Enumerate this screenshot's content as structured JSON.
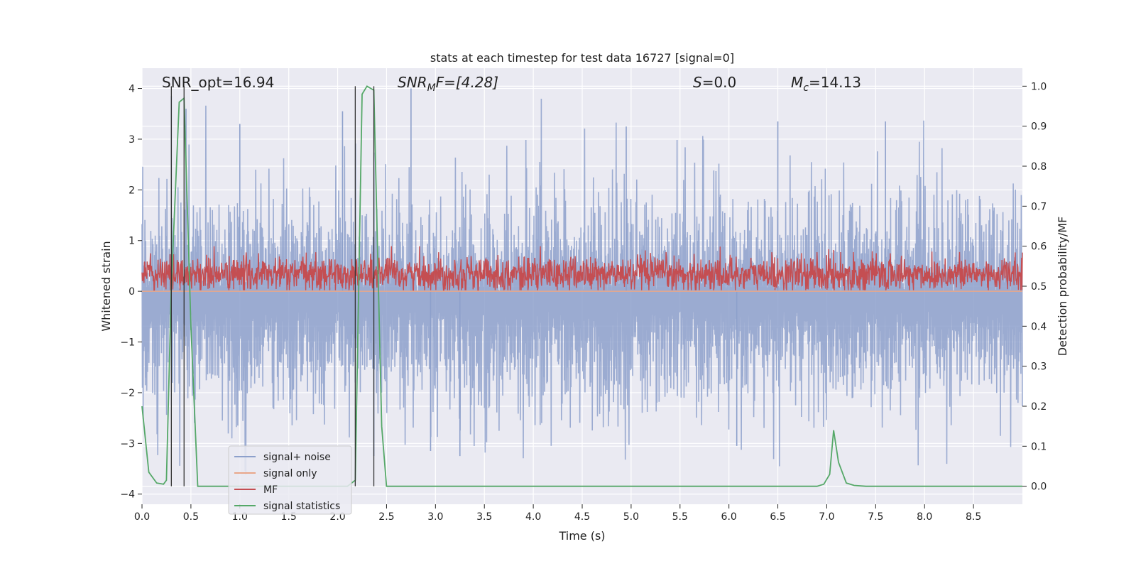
{
  "chart_data": {
    "type": "line",
    "title": "stats at each timestep for test data 16727 [signal=0]",
    "xlabel": "Time (s)",
    "ylabel": "Whitened strain",
    "ylabel_right": "Detection probability/MF",
    "xlim": [
      0.0,
      9.0
    ],
    "ylim": [
      -4.2,
      4.4
    ],
    "ylim_right": [
      -0.045,
      1.045
    ],
    "x_ticks": [
      0.0,
      0.5,
      1.0,
      1.5,
      2.0,
      2.5,
      3.0,
      3.5,
      4.0,
      4.5,
      5.0,
      5.5,
      6.0,
      6.5,
      7.0,
      7.5,
      8.0,
      8.5
    ],
    "x_tick_labels": [
      "0.0",
      "0.5",
      "1.0",
      "1.5",
      "2.0",
      "2.5",
      "3.0",
      "3.5",
      "4.0",
      "4.5",
      "5.0",
      "5.5",
      "6.0",
      "6.5",
      "7.0",
      "7.5",
      "8.0",
      "8.5"
    ],
    "y_ticks": [
      -4,
      -3,
      -2,
      -1,
      0,
      1,
      2,
      3,
      4
    ],
    "y_tick_labels": [
      "−4",
      "−3",
      "−2",
      "−1",
      "0",
      "1",
      "2",
      "3",
      "4"
    ],
    "y_ticks_right": [
      0.0,
      0.1,
      0.2,
      0.3,
      0.4,
      0.5,
      0.6,
      0.7,
      0.8,
      0.9,
      1.0
    ],
    "y_tick_labels_right": [
      "0.0",
      "0.1",
      "0.2",
      "0.3",
      "0.4",
      "0.5",
      "0.6",
      "0.7",
      "0.8",
      "0.9",
      "1.0"
    ],
    "grid": true,
    "legend_position": "lower-left",
    "annotations": {
      "snr_opt": "SNR_opt=16.94",
      "snr_mf": "SNR",
      "snr_mf_sub": "M",
      "snr_mf_rest": "F=[4.28]",
      "s_var": "S",
      "s_rest": "=0.0",
      "mc_var": "M",
      "mc_sub": "c",
      "mc_rest": "=14.13"
    },
    "vertical_lines_x": [
      0.3,
      0.43,
      2.18,
      2.37
    ],
    "series": [
      {
        "name": "signal+ noise",
        "color": "#8da0cb",
        "axis": "left",
        "style": "noise",
        "amplitude_range": [
          -3.7,
          3.9
        ],
        "spikes": [
          {
            "x": 0.3,
            "y": 3.85
          },
          {
            "x": 0.45,
            "y": 3.6
          },
          {
            "x": 1.0,
            "y": 3.3
          },
          {
            "x": 2.05,
            "y": 3.55
          },
          {
            "x": 2.75,
            "y": 4.0
          },
          {
            "x": 2.37,
            "y": -3.25
          },
          {
            "x": 3.25,
            "y": -3.25
          },
          {
            "x": 4.95,
            "y": 3.25
          },
          {
            "x": 6.5,
            "y": 3.35
          },
          {
            "x": 7.6,
            "y": 3.35
          },
          {
            "x": 6.08,
            "y": -3.05
          },
          {
            "x": 2.95,
            "y": -3.15
          }
        ]
      },
      {
        "name": "signal only",
        "color": "#e9a78a",
        "axis": "left",
        "style": "flat",
        "value": 0.0
      },
      {
        "name": "MF",
        "color": "#c44e52",
        "axis": "right",
        "style": "noise",
        "amplitude_range": [
          0.49,
          0.6
        ]
      },
      {
        "name": "signal statistics",
        "color": "#55a868",
        "axis": "right",
        "style": "line",
        "x": [
          0.0,
          0.07,
          0.15,
          0.22,
          0.25,
          0.3,
          0.38,
          0.43,
          0.5,
          0.57,
          0.65,
          2.1,
          2.18,
          2.25,
          2.3,
          2.37,
          2.45,
          2.5,
          2.6,
          6.9,
          6.97,
          7.03,
          7.07,
          7.12,
          7.2,
          7.28,
          7.4,
          9.0
        ],
        "y": [
          0.2,
          0.035,
          0.008,
          0.005,
          0.015,
          0.5,
          0.96,
          0.97,
          0.4,
          0.0,
          0.0,
          0.0,
          0.015,
          0.98,
          1.0,
          0.99,
          0.15,
          0.0,
          0.0,
          0.0,
          0.005,
          0.03,
          0.14,
          0.06,
          0.008,
          0.002,
          0.0,
          0.0
        ]
      }
    ]
  }
}
